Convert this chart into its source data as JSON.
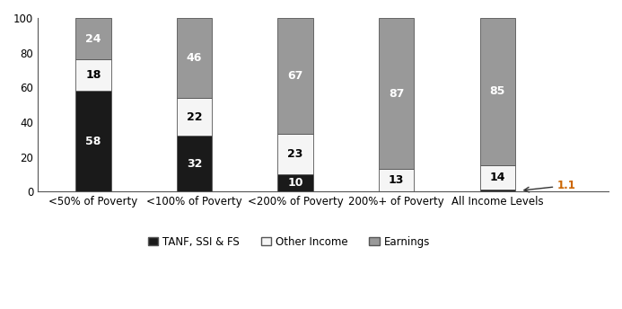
{
  "categories": [
    "<50% of Poverty",
    "<100% of Poverty",
    "<200% of Poverty",
    "200%+ of Poverty",
    "All Income Levels"
  ],
  "tanf_ssi_fs": [
    58,
    32,
    10,
    0,
    1.1
  ],
  "other_income": [
    18,
    22,
    23,
    13,
    14
  ],
  "earnings": [
    24,
    46,
    67,
    87,
    85
  ],
  "tanf_color": "#1a1a1a",
  "other_color": "#f5f5f5",
  "earnings_color": "#999999",
  "bar_edge_color": "#555555",
  "annotation_1_1_color": "#cc6600",
  "ylim": [
    0,
    100
  ],
  "yticks": [
    0,
    20,
    40,
    60,
    80,
    100
  ],
  "bar_width": 0.35,
  "legend_labels": [
    "TANF, SSI & FS",
    "Other Income",
    "Earnings"
  ],
  "figure_width": 6.93,
  "figure_height": 3.44,
  "dpi": 100
}
